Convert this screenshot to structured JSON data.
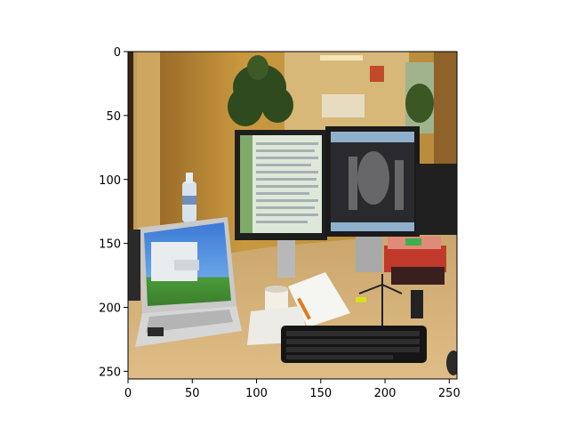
{
  "figure": {
    "x_ticks": [
      "0",
      "50",
      "100",
      "150",
      "200",
      "250"
    ],
    "y_ticks": [
      "0",
      "50",
      "100",
      "150",
      "200",
      "250"
    ],
    "axis_range": {
      "x": [
        0,
        256
      ],
      "y": [
        256,
        0
      ]
    }
  },
  "photo": {
    "subject": "office desk with laptop, two monitors, keyboard and papers",
    "colors": {
      "wall": "#c89a4a",
      "desk": "#d9b57e",
      "monitor_bezel": "#1e1e1e",
      "screen_left": "#dfe8d8",
      "screen_right": "#2a2a2e",
      "laptop_body": "#c9c9c9",
      "laptop_screen": "#3f7fd4",
      "keyboard": "#151515",
      "plant": "#2f4a1e"
    }
  }
}
